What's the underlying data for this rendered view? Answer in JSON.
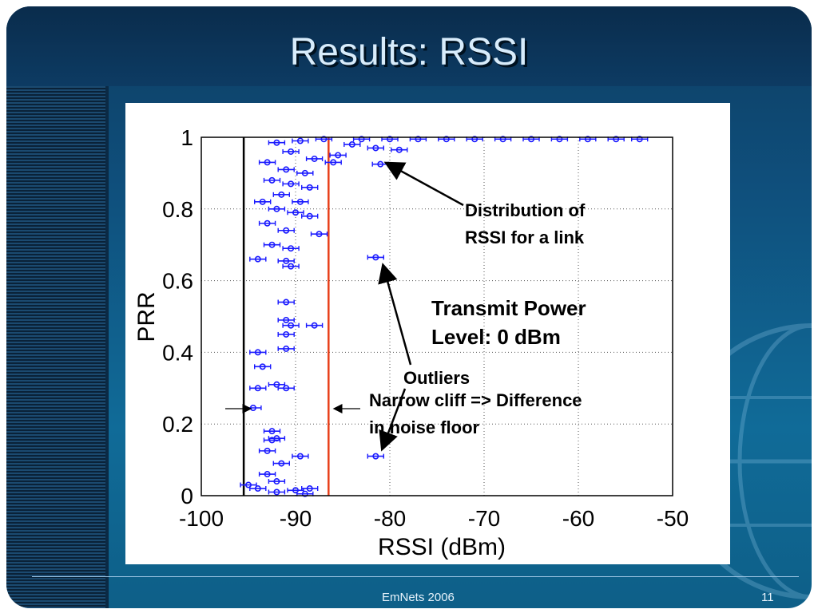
{
  "slide": {
    "title": "Results: RSSI",
    "footer": "EmNets 2006",
    "page_number": "11"
  },
  "annotations": {
    "distribution_line1": "Distribution of",
    "distribution_line2": "RSSI for a link",
    "transmit_line1": "Transmit Power",
    "transmit_line2": "Level: 0 dBm",
    "outliers": "Outliers",
    "cliff_line1": "Narrow cliff => Difference",
    "cliff_line2": "in noise floor"
  },
  "colors": {
    "marker": "#1a1aff",
    "cliff_line": "#e8401a",
    "noise_floor_line": "#000000",
    "background_dark": "#0d3b63"
  },
  "chart_data": {
    "type": "scatter",
    "xlabel": "RSSI (dBm)",
    "ylabel": "PRR",
    "xlim": [
      -100,
      -50
    ],
    "ylim": [
      0,
      1
    ],
    "xticks": [
      -100,
      -90,
      -80,
      -70,
      -60,
      -50
    ],
    "yticks": [
      0,
      0.2,
      0.4,
      0.6,
      0.8,
      1
    ],
    "xtick_labels": [
      "-100",
      "-90",
      "-80",
      "-70",
      "-60",
      "-50"
    ],
    "ytick_labels": [
      "0",
      "0.2",
      "0.4",
      "0.6",
      "0.8",
      "1"
    ],
    "grid": true,
    "vertical_lines": [
      {
        "x": -95.5,
        "color": "#000000"
      },
      {
        "x": -86.5,
        "color": "#e8401a"
      }
    ],
    "points": [
      {
        "x": -83.0,
        "y": 0.995
      },
      {
        "x": -80.0,
        "y": 0.995
      },
      {
        "x": -77.0,
        "y": 0.995
      },
      {
        "x": -74.0,
        "y": 0.995
      },
      {
        "x": -71.0,
        "y": 0.995
      },
      {
        "x": -68.0,
        "y": 0.995
      },
      {
        "x": -65.0,
        "y": 0.995
      },
      {
        "x": -62.0,
        "y": 0.995
      },
      {
        "x": -59.0,
        "y": 0.995
      },
      {
        "x": -56.0,
        "y": 0.995
      },
      {
        "x": -53.5,
        "y": 0.995
      },
      {
        "x": -87.0,
        "y": 0.995
      },
      {
        "x": -89.5,
        "y": 0.99
      },
      {
        "x": -92.0,
        "y": 0.985
      },
      {
        "x": -84.0,
        "y": 0.98
      },
      {
        "x": -81.5,
        "y": 0.97
      },
      {
        "x": -79.0,
        "y": 0.965
      },
      {
        "x": -90.5,
        "y": 0.96
      },
      {
        "x": -85.5,
        "y": 0.95
      },
      {
        "x": -88.0,
        "y": 0.94
      },
      {
        "x": -86.0,
        "y": 0.93
      },
      {
        "x": -93.0,
        "y": 0.93
      },
      {
        "x": -91.0,
        "y": 0.91
      },
      {
        "x": -89.0,
        "y": 0.9
      },
      {
        "x": -92.5,
        "y": 0.88
      },
      {
        "x": -90.5,
        "y": 0.87
      },
      {
        "x": -88.5,
        "y": 0.86
      },
      {
        "x": -91.5,
        "y": 0.84
      },
      {
        "x": -89.5,
        "y": 0.82
      },
      {
        "x": -93.5,
        "y": 0.82
      },
      {
        "x": -92.0,
        "y": 0.8
      },
      {
        "x": -90.0,
        "y": 0.79
      },
      {
        "x": -88.5,
        "y": 0.78
      },
      {
        "x": -93.0,
        "y": 0.76
      },
      {
        "x": -91.0,
        "y": 0.74
      },
      {
        "x": -87.5,
        "y": 0.73
      },
      {
        "x": -92.5,
        "y": 0.7
      },
      {
        "x": -90.5,
        "y": 0.69
      },
      {
        "x": -94.0,
        "y": 0.66
      },
      {
        "x": -91.0,
        "y": 0.655
      },
      {
        "x": -90.5,
        "y": 0.64
      },
      {
        "x": -91.0,
        "y": 0.54
      },
      {
        "x": -91.0,
        "y": 0.49
      },
      {
        "x": -90.5,
        "y": 0.475
      },
      {
        "x": -88.0,
        "y": 0.475
      },
      {
        "x": -91.0,
        "y": 0.45
      },
      {
        "x": -91.0,
        "y": 0.41
      },
      {
        "x": -94.0,
        "y": 0.4
      },
      {
        "x": -93.5,
        "y": 0.36
      },
      {
        "x": -94.0,
        "y": 0.3
      },
      {
        "x": -92.0,
        "y": 0.31
      },
      {
        "x": -91.0,
        "y": 0.3
      },
      {
        "x": -94.5,
        "y": 0.245
      },
      {
        "x": -92.5,
        "y": 0.18
      },
      {
        "x": -92.0,
        "y": 0.16
      },
      {
        "x": -92.5,
        "y": 0.155
      },
      {
        "x": -93.0,
        "y": 0.125
      },
      {
        "x": -89.5,
        "y": 0.11
      },
      {
        "x": -91.5,
        "y": 0.09
      },
      {
        "x": -93.0,
        "y": 0.06
      },
      {
        "x": -92.0,
        "y": 0.04
      },
      {
        "x": -95.0,
        "y": 0.03
      },
      {
        "x": -94.0,
        "y": 0.02
      },
      {
        "x": -92.0,
        "y": 0.01
      },
      {
        "x": -90.0,
        "y": 0.015
      },
      {
        "x": -89.0,
        "y": 0.005
      },
      {
        "x": -88.5,
        "y": 0.02
      },
      {
        "x": -81.0,
        "y": 0.925
      },
      {
        "x": -81.5,
        "y": 0.665
      },
      {
        "x": -81.5,
        "y": 0.11
      }
    ]
  }
}
